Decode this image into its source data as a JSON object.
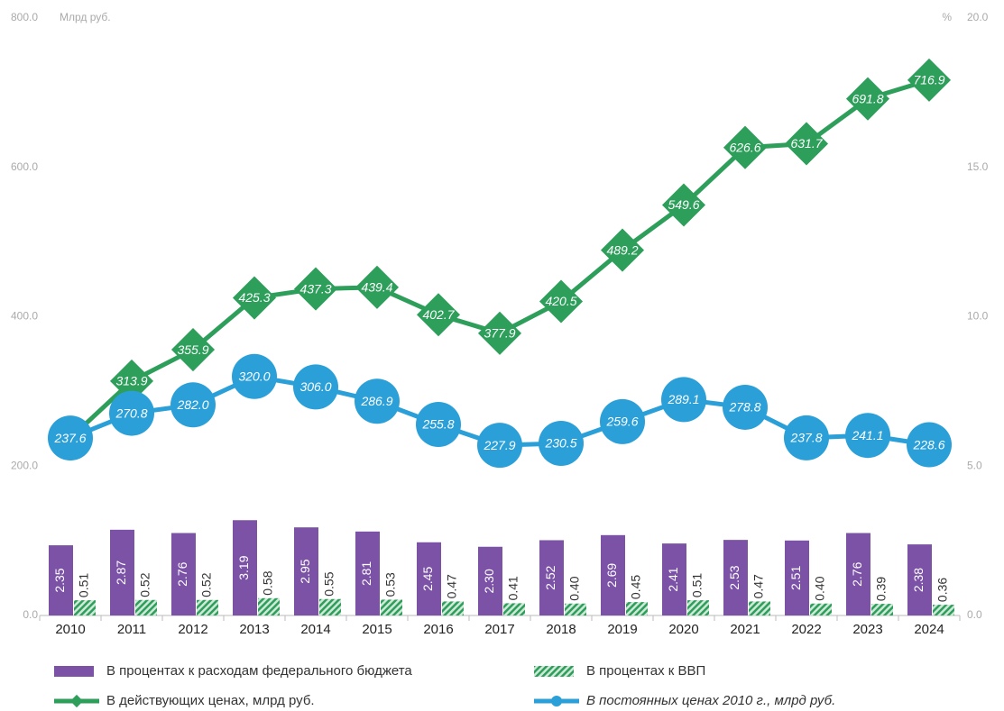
{
  "chart_data": {
    "type": "bar-line",
    "y_axis_label": "Млрд руб.",
    "y2_axis_label": "%",
    "categories": [
      "2010",
      "2011",
      "2012",
      "2013",
      "2014",
      "2015",
      "2016",
      "2017",
      "2018",
      "2019",
      "2020",
      "2021",
      "2022",
      "2023",
      "2024"
    ],
    "ylim": [
      0,
      800
    ],
    "yticks": [
      {
        "value": 0,
        "label": "0.0"
      },
      {
        "value": 200,
        "label": "200.0"
      },
      {
        "value": 400,
        "label": "400.0"
      },
      {
        "value": 600,
        "label": "600.0"
      },
      {
        "value": 800,
        "label": "800.0"
      }
    ],
    "y2lim": [
      0,
      20
    ],
    "y2ticks": [
      {
        "value": 0,
        "label": "0.0"
      },
      {
        "value": 5,
        "label": "5.0"
      },
      {
        "value": 10,
        "label": "10.0"
      },
      {
        "value": 15,
        "label": "15.0"
      },
      {
        "value": 20,
        "label": "20.0"
      }
    ],
    "grid": false,
    "legend": "bottom",
    "series": [
      {
        "name": "В процентах к расходам федерального бюджета",
        "kind": "bar",
        "axis": "y2",
        "color": "#7b52a6",
        "values": [
          2.35,
          2.87,
          2.76,
          3.19,
          2.95,
          2.81,
          2.45,
          2.3,
          2.52,
          2.69,
          2.41,
          2.53,
          2.51,
          2.76,
          2.38
        ],
        "value_labels": [
          "2.35",
          "2.87",
          "2.76",
          "3.19",
          "2.95",
          "2.81",
          "2.45",
          "2.30",
          "2.52",
          "2.69",
          "2.41",
          "2.53",
          "2.51",
          "2.76",
          "2.38"
        ]
      },
      {
        "name": "В процентах к ВВП",
        "kind": "hatched-bar",
        "axis": "y2",
        "color": "#2e9e5b",
        "values": [
          0.51,
          0.52,
          0.52,
          0.58,
          0.55,
          0.53,
          0.47,
          0.41,
          0.4,
          0.45,
          0.51,
          0.47,
          0.4,
          0.39,
          0.36
        ],
        "value_labels": [
          "0.51",
          "0.52",
          "0.52",
          "0.58",
          "0.55",
          "0.53",
          "0.47",
          "0.41",
          "0.40",
          "0.45",
          "0.51",
          "0.47",
          "0.40",
          "0.39",
          "0.36"
        ]
      },
      {
        "name": "В действующих ценах, млрд руб.",
        "kind": "line-diamond",
        "axis": "y",
        "color": "#2e9e5b",
        "values": [
          237.6,
          313.9,
          355.9,
          425.3,
          437.3,
          439.4,
          402.7,
          377.9,
          420.5,
          489.2,
          549.6,
          626.6,
          631.7,
          691.8,
          716.9
        ]
      },
      {
        "name": "В постоянных ценах 2010 г., млрд руб.",
        "kind": "line-circle",
        "axis": "y",
        "color": "#2a9fd8",
        "values": [
          237.6,
          270.8,
          282,
          320,
          306,
          286.9,
          255.8,
          227.9,
          230.5,
          259.6,
          289.1,
          278.8,
          237.8,
          241.1,
          228.6
        ],
        "value_labels": [
          "237.6",
          "270.8",
          "282.0",
          "320.0",
          "306.0",
          "286.9",
          "255.8",
          "227.9",
          "230.5",
          "259.6",
          "289.1",
          "278.8",
          "237.8",
          "241.1",
          "228.6"
        ]
      }
    ]
  }
}
